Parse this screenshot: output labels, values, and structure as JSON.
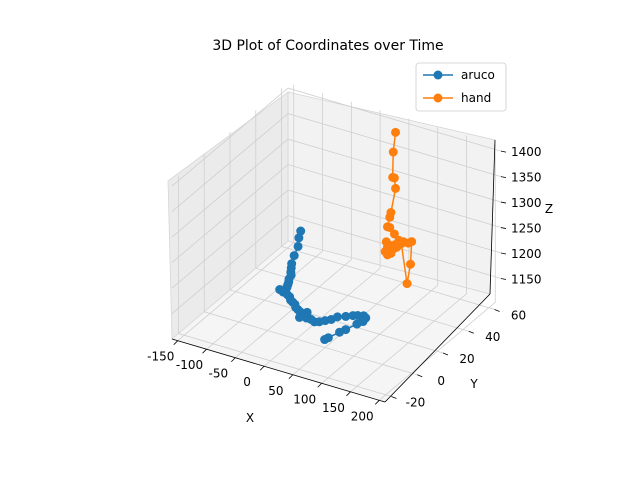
{
  "chart_data": {
    "type": "line3d",
    "title": "3D Plot of Coordinates over Time",
    "xlabel": "X",
    "ylabel": "Y",
    "zlabel": "Z",
    "xlim": [
      -160,
      210
    ],
    "ylim": [
      -25,
      65
    ],
    "zlim": [
      1100,
      1410
    ],
    "x_ticks": [
      "-150",
      "-100",
      "-50",
      "0",
      "50",
      "100",
      "150",
      "200"
    ],
    "y_ticks": [
      "-20",
      "0",
      "20",
      "40",
      "60"
    ],
    "z_ticks": [
      "1150",
      "1200",
      "1250",
      "1300",
      "1350",
      "1400"
    ],
    "x_tick_values": [
      -150,
      -100,
      -50,
      0,
      50,
      100,
      150,
      200
    ],
    "y_tick_values": [
      -20,
      0,
      20,
      40,
      60
    ],
    "z_tick_values": [
      1150,
      1200,
      1250,
      1300,
      1350,
      1400
    ],
    "legend_position": "top-right",
    "grid": true,
    "series": [
      {
        "name": "aruco",
        "color": "#1f77b4",
        "points": [
          [
            -120,
            57,
            1150
          ],
          [
            -112,
            52,
            1150
          ],
          [
            -100,
            46,
            1150
          ],
          [
            -91,
            39,
            1150
          ],
          [
            -82,
            33,
            1150
          ],
          [
            -76,
            30,
            1150
          ],
          [
            -70,
            27,
            1150
          ],
          [
            -65,
            25,
            1150
          ],
          [
            -62,
            22,
            1150
          ],
          [
            -58,
            20,
            1150
          ],
          [
            -55,
            18,
            1150
          ],
          [
            -52,
            16,
            1150
          ],
          [
            -58,
            13,
            1150
          ],
          [
            -50,
            12,
            1150
          ],
          [
            -45,
            12,
            1150
          ],
          [
            -40,
            11,
            1150
          ],
          [
            -34,
            10,
            1150
          ],
          [
            -28,
            8,
            1150
          ],
          [
            -22,
            7,
            1150
          ],
          [
            -16,
            6,
            1150
          ],
          [
            -10,
            4,
            1150
          ],
          [
            -4,
            3,
            1150
          ],
          [
            2,
            2,
            1150
          ],
          [
            8,
            1,
            1150
          ],
          [
            12,
            3,
            1150
          ],
          [
            16,
            1,
            1150
          ],
          [
            10,
            -2,
            1150
          ],
          [
            20,
            -1,
            1150
          ],
          [
            28,
            -1,
            1150
          ],
          [
            36,
            -2,
            1150
          ],
          [
            42,
            -1,
            1150
          ],
          [
            48,
            1,
            1150
          ],
          [
            54,
            3,
            1150
          ],
          [
            58,
            6,
            1150
          ],
          [
            68,
            8,
            1150
          ],
          [
            76,
            10,
            1150
          ],
          [
            82,
            11,
            1150
          ],
          [
            90,
            12,
            1150
          ],
          [
            96,
            11,
            1150
          ],
          [
            98,
            8,
            1150
          ],
          [
            94,
            5,
            1150
          ],
          [
            88,
            -1,
            1150
          ],
          [
            84,
            -4,
            1150
          ],
          [
            78,
            -10,
            1150
          ],
          [
            76,
            -12,
            1150
          ]
        ]
      },
      {
        "name": "hand",
        "color": "#ff7f0e",
        "points": [
          [
            38,
            60,
            1390
          ],
          [
            34,
            60,
            1350
          ],
          [
            33,
            60,
            1300
          ],
          [
            36,
            60,
            1300
          ],
          [
            38,
            60,
            1280
          ],
          [
            30,
            60,
            1230
          ],
          [
            28,
            60,
            1220
          ],
          [
            24,
            60,
            1200
          ],
          [
            28,
            60,
            1200
          ],
          [
            36,
            60,
            1190
          ],
          [
            44,
            60,
            1180
          ],
          [
            52,
            60,
            1180
          ],
          [
            60,
            60,
            1180
          ],
          [
            66,
            60,
            1185
          ],
          [
            64,
            60,
            1140
          ],
          [
            58,
            60,
            1100
          ],
          [
            48,
            60,
            1175
          ],
          [
            38,
            60,
            1170
          ],
          [
            30,
            60,
            1165
          ],
          [
            24,
            60,
            1160
          ],
          [
            22,
            60,
            1170
          ],
          [
            20,
            60,
            1150
          ],
          [
            24,
            60,
            1145
          ],
          [
            30,
            60,
            1150
          ],
          [
            34,
            60,
            1160
          ],
          [
            40,
            60,
            1165
          ]
        ]
      }
    ]
  }
}
